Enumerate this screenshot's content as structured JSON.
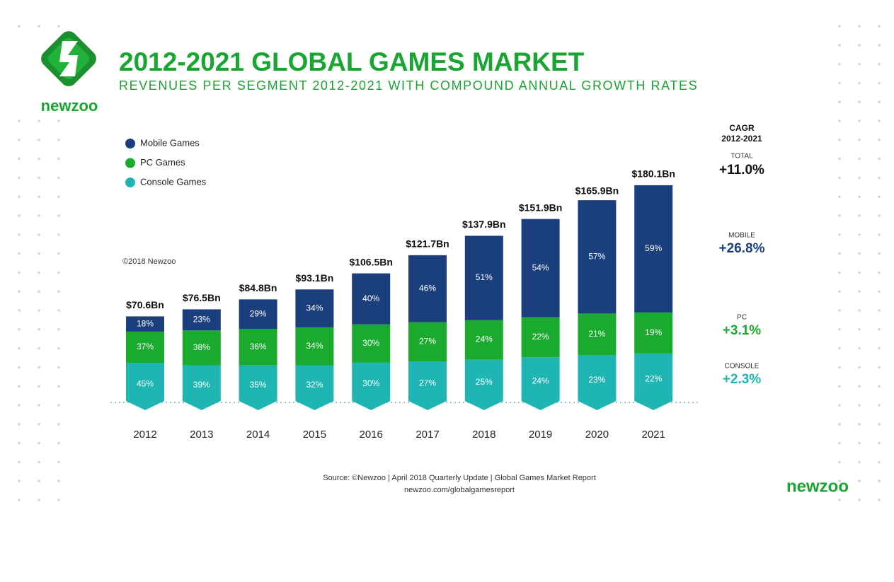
{
  "header": {
    "logo_text": "newzoo",
    "title": "2012-2021 GLOBAL GAMES MARKET",
    "subtitle": "REVENUES PER SEGMENT 2012-2021 WITH COMPOUND ANNUAL GROWTH RATES"
  },
  "chart_data": {
    "type": "stacked_bar",
    "categories": [
      "2012",
      "2013",
      "2014",
      "2015",
      "2016",
      "2017",
      "2018",
      "2019",
      "2020",
      "2021"
    ],
    "series": [
      {
        "name": "Mobile Games",
        "color": "#1b3e7d",
        "values": [
          18,
          23,
          29,
          34,
          40,
          46,
          51,
          54,
          57,
          59
        ],
        "value_labels": [
          "18%",
          "23%",
          "29%",
          "34%",
          "40%",
          "46%",
          "51%",
          "54%",
          "57%",
          "59%"
        ]
      },
      {
        "name": "PC Games",
        "color": "#1aaa2e",
        "values": [
          37,
          38,
          36,
          34,
          30,
          27,
          24,
          22,
          21,
          19
        ],
        "value_labels": [
          "37%",
          "38%",
          "36%",
          "34%",
          "30%",
          "27%",
          "24%",
          "22%",
          "21%",
          "19%"
        ]
      },
      {
        "name": "Console Games",
        "color": "#1fb5b3",
        "values": [
          45,
          39,
          35,
          32,
          30,
          27,
          25,
          24,
          23,
          22
        ],
        "value_labels": [
          "45%",
          "39%",
          "35%",
          "32%",
          "30%",
          "27%",
          "25%",
          "24%",
          "23%",
          "22%"
        ]
      }
    ],
    "totals": {
      "values": [
        70.6,
        76.5,
        84.8,
        93.1,
        106.5,
        121.7,
        137.9,
        151.9,
        165.9,
        180.1
      ],
      "value_labels": [
        "$70.6Bn",
        "$76.5Bn",
        "$84.8Bn",
        "$93.1Bn",
        "$106.5Bn",
        "$121.7Bn",
        "$137.9Bn",
        "$151.9Bn",
        "$165.9Bn",
        "$180.1Bn"
      ]
    },
    "legend": "top-left"
  },
  "copyright": "©2018 Newzoo",
  "cagr": {
    "title": "CAGR",
    "period": "2012-2021",
    "items": [
      {
        "label": "TOTAL",
        "value": "+11.0%",
        "color": "#111111"
      },
      {
        "label": "MOBILE",
        "value": "+26.8%",
        "color": "#1b3e7d"
      },
      {
        "label": "PC",
        "value": "+3.1%",
        "color": "#1aaa2e"
      },
      {
        "label": "CONSOLE",
        "value": "+2.3%",
        "color": "#1fb5b3"
      }
    ]
  },
  "footer": {
    "source": "Source: ©Newzoo | April 2018 Quarterly Update | Global Games Market Report",
    "url": "newzoo.com/globalgamesreport",
    "logo_text": "newzoo"
  }
}
